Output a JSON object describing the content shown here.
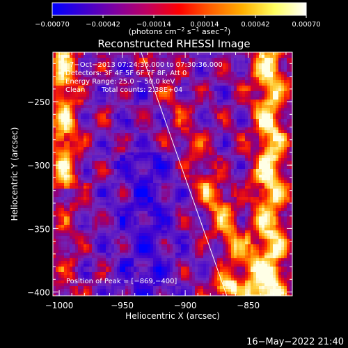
{
  "chart_data": {
    "type": "heatmap",
    "title": "Reconstructed RHESSI Image",
    "xlabel": "Heliocentric X (arcsec)",
    "ylabel": "Heliocentric Y (arcsec)",
    "xlim": [
      -1005,
      -815
    ],
    "ylim": [
      -403,
      -211
    ],
    "x_ticks": [
      -1000,
      -950,
      -900,
      -850
    ],
    "x_tick_labels": [
      "−1000",
      "−950",
      "−900",
      "−850"
    ],
    "y_ticks": [
      -250,
      -300,
      -350,
      -400
    ],
    "y_tick_labels": [
      "−250",
      "−300",
      "−350",
      "−400"
    ],
    "colorbar": {
      "range": [
        -0.0007,
        0.0007
      ],
      "ticks": [
        -0.0007,
        -0.00042,
        -0.00014,
        0.00014,
        0.00042,
        0.0007
      ],
      "tick_labels": [
        "−0.00070",
        "−0.00042",
        "−0.00014",
        "0.00014",
        "0.00042",
        "0.00070"
      ],
      "unit_main": "(photons cm",
      "unit_exp1": "−2",
      "unit_mid": " s",
      "unit_exp2": "−1",
      "unit_end": " asec",
      "unit_exp3": "−2",
      "unit_close": ")",
      "colors": [
        "#0000ff",
        "#3d00d0",
        "#8000a0",
        "#c00060",
        "#ff0000",
        "#ff6000",
        "#ffb000",
        "#ffff60",
        "#ffffff"
      ]
    },
    "annotations": {
      "time": "7−Oct−2013 07:24:36.000 to 07:30:36.000",
      "detectors": "Detectors: 3F 4F 5F 6F 7F 8F, Att 0",
      "energy": "Energy Range: 25.0 − 50.0 keV",
      "method": "Clean",
      "counts": "Total counts: 2.38E+04",
      "peak": "Position of Peak = [−869,−400]"
    },
    "limb_line": [
      [
        -935,
        -211
      ],
      [
        -867,
        -403
      ]
    ],
    "grid": false
  },
  "footer": {
    "date": "16−May−2022 21:40"
  }
}
